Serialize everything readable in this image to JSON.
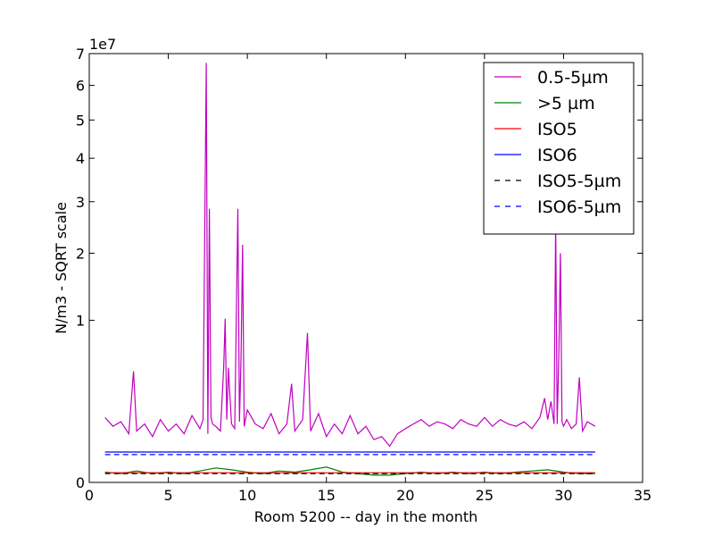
{
  "chart_data": {
    "type": "line",
    "title": "",
    "xlabel": "Room 5200 -- day in the month",
    "ylabel": "N/m3 - SQRT scale",
    "offset_text": "1e7",
    "yscale": "sqrt",
    "xlim": [
      0,
      35
    ],
    "ylim": [
      0,
      70000000
    ],
    "xticks": [
      0,
      5,
      10,
      15,
      20,
      25,
      30,
      35
    ],
    "yticks": [
      0,
      10000000,
      20000000,
      30000000,
      40000000,
      50000000,
      60000000,
      70000000
    ],
    "ytick_labels": [
      "0",
      "1",
      "2",
      "3",
      "4",
      "5",
      "6",
      "7"
    ],
    "grid": false,
    "legend_position": "top-right",
    "series": [
      {
        "name": "0.5-5µm",
        "color": "#bf00bf",
        "style": "solid",
        "x": [
          1.0,
          1.5,
          2.0,
          2.5,
          2.8,
          3.0,
          3.5,
          4.0,
          4.5,
          5.0,
          5.5,
          6.0,
          6.5,
          7.0,
          7.2,
          7.4,
          7.5,
          7.6,
          7.7,
          7.8,
          8.0,
          8.3,
          8.5,
          8.6,
          8.7,
          8.8,
          9.0,
          9.2,
          9.4,
          9.5,
          9.6,
          9.7,
          9.8,
          10.0,
          10.5,
          11.0,
          11.5,
          12.0,
          12.5,
          12.8,
          13.0,
          13.5,
          13.8,
          14.0,
          14.5,
          15.0,
          15.5,
          16.0,
          16.5,
          17.0,
          17.5,
          18.0,
          18.5,
          19.0,
          19.5,
          20.0,
          20.5,
          21.0,
          21.5,
          22.0,
          22.5,
          23.0,
          23.5,
          24.0,
          24.5,
          25.0,
          25.5,
          26.0,
          26.5,
          27.0,
          27.5,
          28.0,
          28.5,
          28.8,
          29.0,
          29.2,
          29.4,
          29.5,
          29.6,
          29.7,
          29.8,
          29.9,
          30.0,
          30.2,
          30.5,
          30.8,
          31.0,
          31.2,
          31.5,
          32.0
        ],
        "y": [
          1600000,
          1200000,
          1400000,
          900000,
          4700000,
          1000000,
          1300000,
          800000,
          1500000,
          1000000,
          1300000,
          900000,
          1700000,
          1100000,
          1500000,
          67000000,
          900000,
          28500000,
          1600000,
          1300000,
          1200000,
          1000000,
          5000000,
          10200000,
          1500000,
          5000000,
          1300000,
          1100000,
          28500000,
          1400000,
          6000000,
          21500000,
          1200000,
          2000000,
          1300000,
          1100000,
          1800000,
          900000,
          1300000,
          3700000,
          1000000,
          1500000,
          8500000,
          1000000,
          1800000,
          800000,
          1300000,
          900000,
          1700000,
          900000,
          1200000,
          700000,
          800000,
          500000,
          900000,
          1100000,
          1300000,
          1500000,
          1200000,
          1400000,
          1300000,
          1100000,
          1500000,
          1300000,
          1200000,
          1600000,
          1200000,
          1500000,
          1300000,
          1200000,
          1400000,
          1100000,
          1600000,
          2700000,
          1500000,
          2500000,
          1300000,
          26000000,
          1300000,
          6000000,
          20000000,
          1400000,
          1200000,
          1500000,
          1100000,
          1300000,
          4200000,
          1000000,
          1400000,
          1200000
        ]
      },
      {
        "name": ">5 µm",
        "color": "#008000",
        "style": "solid",
        "x": [
          1,
          2,
          3,
          4,
          5,
          6,
          7,
          8,
          9,
          10,
          11,
          12,
          13,
          14,
          15,
          16,
          17,
          18,
          19,
          20,
          21,
          22,
          23,
          24,
          25,
          26,
          27,
          28,
          29,
          30,
          31,
          32
        ],
        "y": [
          40000,
          30000,
          50000,
          30000,
          40000,
          30000,
          50000,
          80000,
          60000,
          40000,
          30000,
          50000,
          40000,
          60000,
          90000,
          40000,
          30000,
          20000,
          20000,
          30000,
          40000,
          30000,
          40000,
          30000,
          40000,
          30000,
          40000,
          50000,
          60000,
          40000,
          30000,
          30000
        ]
      },
      {
        "name": "ISO5",
        "color": "#ff0000",
        "style": "solid",
        "x": [
          1,
          32
        ],
        "y": [
          35200,
          35200
        ]
      },
      {
        "name": "ISO6",
        "color": "#0000ff",
        "style": "solid",
        "x": [
          1,
          32
        ],
        "y": [
          352000,
          352000
        ]
      },
      {
        "name": "ISO5-5µm",
        "color": "#000000",
        "style": "dashed",
        "x": [
          1,
          32
        ],
        "y": [
          29300,
          29300
        ]
      },
      {
        "name": "ISO6-5µm",
        "color": "#0000ff",
        "style": "dashed",
        "x": [
          1,
          32
        ],
        "y": [
          293000,
          293000
        ]
      }
    ]
  }
}
